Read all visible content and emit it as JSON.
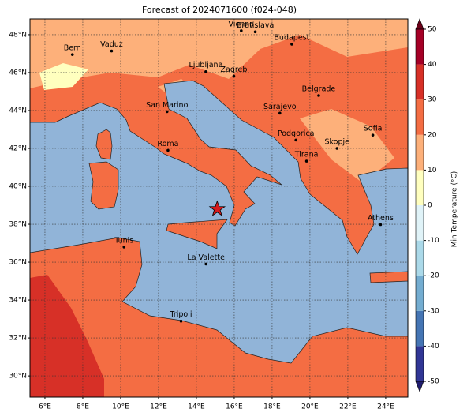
{
  "map": {
    "title": "Forecast of 2024071600 (f024-048)",
    "xlim": [
      5.21,
      25.17
    ],
    "ylim": [
      28.88,
      48.83
    ],
    "xticks": [
      {
        "value": 6,
        "label": "6°E"
      },
      {
        "value": 8,
        "label": "8°E"
      },
      {
        "value": 10,
        "label": "10°E"
      },
      {
        "value": 12,
        "label": "12°E"
      },
      {
        "value": 14,
        "label": "14°E"
      },
      {
        "value": 16,
        "label": "16°E"
      },
      {
        "value": 18,
        "label": "18°E"
      },
      {
        "value": 20,
        "label": "20°E"
      },
      {
        "value": 22,
        "label": "22°E"
      },
      {
        "value": 24,
        "label": "24°E"
      }
    ],
    "yticks": [
      {
        "value": 30,
        "label": "30°N"
      },
      {
        "value": 32,
        "label": "32°N"
      },
      {
        "value": 34,
        "label": "34°N"
      },
      {
        "value": 36,
        "label": "36°N"
      },
      {
        "value": 38,
        "label": "38°N"
      },
      {
        "value": 40,
        "label": "40°N"
      },
      {
        "value": 42,
        "label": "42°N"
      },
      {
        "value": 44,
        "label": "44°N"
      },
      {
        "value": 46,
        "label": "46°N"
      },
      {
        "value": 48,
        "label": "48°N"
      }
    ],
    "grid": true,
    "cities": [
      {
        "name": "Bern",
        "lon": 7.45,
        "lat": 46.95
      },
      {
        "name": "Vaduz",
        "lon": 9.52,
        "lat": 47.14
      },
      {
        "name": "Vienna",
        "lon": 16.37,
        "lat": 48.21
      },
      {
        "name": "Bratislava",
        "lon": 17.11,
        "lat": 48.15
      },
      {
        "name": "Budapest",
        "lon": 19.04,
        "lat": 47.5
      },
      {
        "name": "Ljubljana",
        "lon": 14.5,
        "lat": 46.05
      },
      {
        "name": "Zagreb",
        "lon": 15.98,
        "lat": 45.81
      },
      {
        "name": "Belgrade",
        "lon": 20.46,
        "lat": 44.79
      },
      {
        "name": "San Marino",
        "lon": 12.45,
        "lat": 43.94
      },
      {
        "name": "Sarajevo",
        "lon": 18.41,
        "lat": 43.86
      },
      {
        "name": "Roma",
        "lon": 12.5,
        "lat": 41.9
      },
      {
        "name": "Podgorica",
        "lon": 19.26,
        "lat": 42.44
      },
      {
        "name": "Skopje",
        "lon": 21.43,
        "lat": 42.0
      },
      {
        "name": "Sofia",
        "lon": 23.32,
        "lat": 42.7
      },
      {
        "name": "Tirana",
        "lon": 19.82,
        "lat": 41.33
      },
      {
        "name": "Athens",
        "lon": 23.73,
        "lat": 37.98
      },
      {
        "name": "Tunis",
        "lon": 10.18,
        "lat": 36.8
      },
      {
        "name": "La Valette",
        "lon": 14.51,
        "lat": 35.9
      },
      {
        "name": "Tripoli",
        "lon": 13.19,
        "lat": 32.89
      }
    ],
    "marker": {
      "lon": 15.1,
      "lat": 38.8,
      "color": "#d7191c"
    },
    "colorbar": {
      "label": "Min Temperature (°C)",
      "range": [
        -50,
        50
      ],
      "ticks": [
        -50,
        -40,
        -30,
        -20,
        -10,
        0,
        10,
        20,
        30,
        40,
        50
      ],
      "colors": [
        "#313695",
        "#4575b4",
        "#74add1",
        "#abd9e9",
        "#e0f3f8",
        "#ffffbf",
        "#fdb07a",
        "#f46d43",
        "#d73027",
        "#a50026"
      ],
      "under_color": "#1f1c6e",
      "over_color": "#6b0018"
    }
  }
}
